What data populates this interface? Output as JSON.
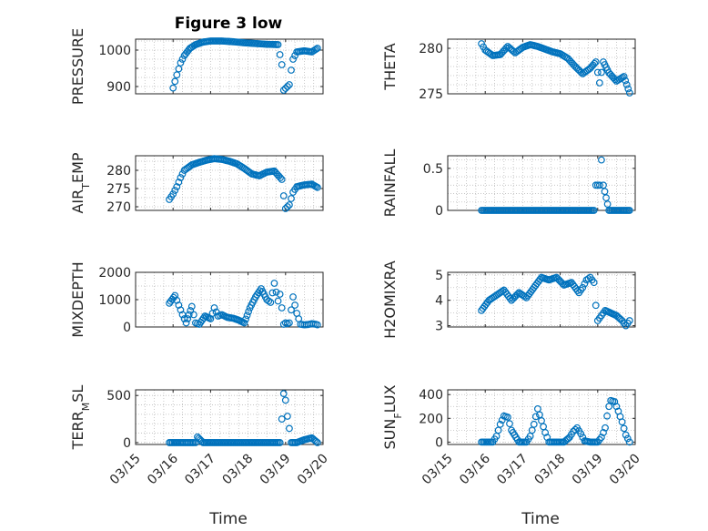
{
  "figure": {
    "title": "Figure 3 low"
  },
  "chart_data": [
    {
      "type": "scatter",
      "ylabel": "PRESSURE",
      "ylim": [
        880,
        1030
      ],
      "yticks": [
        900,
        950,
        1000
      ],
      "ytick_labels": [
        "900",
        "",
        "1000"
      ],
      "y_grid": [
        900,
        925,
        950,
        975,
        1000,
        1025
      ],
      "xtick_labels": [],
      "xlabel": "",
      "x": [
        16.0,
        16.1,
        16.2,
        16.3,
        16.45,
        16.6,
        16.8,
        17.0,
        17.3,
        17.6,
        17.9,
        18.2,
        18.5,
        18.8,
        18.9,
        18.95,
        19.0,
        19.05,
        19.1,
        19.15,
        19.2,
        19.3,
        19.5,
        19.7,
        19.85
      ],
      "y": [
        896,
        932,
        965,
        985,
        1005,
        1015,
        1022,
        1025,
        1025,
        1023,
        1020,
        1018,
        1016,
        1015,
        960,
        890,
        895,
        900,
        905,
        945,
        975,
        995,
        998,
        995,
        1005
      ]
    },
    {
      "type": "scatter",
      "ylabel": "THETA",
      "ylim": [
        275,
        281
      ],
      "yticks": [
        275,
        280
      ],
      "ytick_labels": [
        "275",
        "280"
      ],
      "y_grid": [
        275,
        276,
        277,
        278,
        279,
        280,
        281
      ],
      "xtick_labels": [],
      "xlabel": "",
      "x": [
        15.9,
        16.0,
        16.2,
        16.4,
        16.6,
        16.8,
        17.0,
        17.2,
        17.4,
        17.6,
        17.8,
        18.0,
        18.2,
        18.4,
        18.6,
        18.8,
        18.95,
        19.05,
        19.15,
        19.3,
        19.5,
        19.7,
        19.85
      ],
      "y": [
        280.5,
        279.8,
        279.2,
        279.3,
        280.2,
        279.5,
        280.1,
        280.4,
        280.2,
        279.9,
        279.6,
        279.4,
        278.9,
        278.0,
        277.2,
        277.8,
        278.5,
        276.2,
        278.5,
        277.3,
        276.4,
        276.9,
        275.1
      ]
    },
    {
      "type": "scatter",
      "ylabel": "AIR_TEMP",
      "ylim": [
        269,
        284
      ],
      "yticks": [
        270,
        275,
        280
      ],
      "ytick_labels": [
        "270",
        "275",
        "280"
      ],
      "y_grid": [
        270,
        272.5,
        275,
        277.5,
        280,
        282.5
      ],
      "xtick_labels": [],
      "xlabel": "",
      "x": [
        15.9,
        16.0,
        16.1,
        16.2,
        16.3,
        16.5,
        16.7,
        16.9,
        17.1,
        17.3,
        17.5,
        17.7,
        17.9,
        18.1,
        18.3,
        18.5,
        18.7,
        18.9,
        18.95,
        19.0,
        19.1,
        19.2,
        19.3,
        19.5,
        19.7,
        19.85
      ],
      "y": [
        272,
        273.5,
        275.5,
        278,
        280,
        281.5,
        282.2,
        282.8,
        283.2,
        283.0,
        282.5,
        281.8,
        280.5,
        279.0,
        278.5,
        279.5,
        279.8,
        277.5,
        273.0,
        269.5,
        270.5,
        274,
        275.5,
        276,
        276.2,
        275.3
      ]
    },
    {
      "type": "scatter",
      "ylabel": "RAINFALL",
      "ylim": [
        0,
        0.65
      ],
      "yticks": [
        0,
        0.5
      ],
      "ytick_labels": [
        "0",
        "0.5"
      ],
      "y_grid": [
        0,
        0.1,
        0.2,
        0.3,
        0.4,
        0.5,
        0.6
      ],
      "xtick_labels": [],
      "xlabel": "",
      "x": [
        15.9,
        16.3,
        16.7,
        17.1,
        17.5,
        17.9,
        18.3,
        18.7,
        18.9,
        18.95,
        19.0,
        19.05,
        19.1,
        19.15,
        19.3,
        19.5,
        19.7,
        19.85
      ],
      "y": [
        0,
        0,
        0,
        0,
        0,
        0,
        0,
        0,
        0,
        0.3,
        0.3,
        0.3,
        0.6,
        0.3,
        0,
        0,
        0,
        0
      ]
    },
    {
      "type": "scatter",
      "ylabel": "MIXDEPTH",
      "ylim": [
        0,
        2000
      ],
      "yticks": [
        0,
        1000,
        2000
      ],
      "ytick_labels": [
        "0",
        "1000",
        "2000"
      ],
      "y_grid": [
        0,
        500,
        1000,
        1500,
        2000
      ],
      "xtick_labels": [],
      "xlabel": "",
      "x": [
        15.9,
        16.05,
        16.15,
        16.25,
        16.35,
        16.5,
        16.6,
        16.7,
        16.85,
        17.0,
        17.1,
        17.2,
        17.3,
        17.45,
        17.6,
        17.75,
        17.9,
        18.05,
        18.2,
        18.35,
        18.5,
        18.6,
        18.7,
        18.8,
        18.85,
        18.9,
        18.95,
        19.0,
        19.05,
        19.1,
        19.2,
        19.3,
        19.4,
        19.5,
        19.6,
        19.7,
        19.8,
        19.85
      ],
      "y": [
        870,
        1150,
        800,
        450,
        150,
        750,
        150,
        100,
        400,
        300,
        700,
        400,
        450,
        350,
        320,
        250,
        150,
        700,
        1100,
        1400,
        1000,
        900,
        1600,
        950,
        1200,
        700,
        100,
        150,
        120,
        150,
        1100,
        500,
        100,
        80,
        90,
        120,
        100,
        80
      ]
    },
    {
      "type": "scatter",
      "ylabel": "H2OMIXRA",
      "ylim": [
        2.95,
        5.1
      ],
      "yticks": [
        3,
        4,
        5
      ],
      "ytick_labels": [
        "3",
        "4",
        "5"
      ],
      "y_grid": [
        3,
        3.5,
        4,
        4.5,
        5
      ],
      "xtick_labels": [],
      "xlabel": "",
      "x": [
        15.9,
        16.1,
        16.3,
        16.5,
        16.7,
        16.9,
        17.1,
        17.3,
        17.5,
        17.7,
        17.9,
        18.1,
        18.3,
        18.5,
        18.6,
        18.7,
        18.8,
        18.9,
        18.95,
        19.0,
        19.1,
        19.2,
        19.35,
        19.5,
        19.65,
        19.75,
        19.85
      ],
      "y": [
        3.6,
        4.0,
        4.2,
        4.4,
        4.0,
        4.3,
        4.1,
        4.5,
        4.9,
        4.8,
        4.9,
        4.6,
        4.7,
        4.3,
        4.5,
        4.8,
        4.9,
        4.7,
        3.8,
        3.2,
        3.4,
        3.6,
        3.5,
        3.4,
        3.2,
        3.0,
        3.2
      ]
    },
    {
      "type": "scatter",
      "ylabel": "TERR_MSL",
      "ylim": [
        -20,
        560
      ],
      "yticks": [
        0,
        500
      ],
      "ytick_labels": [
        "0",
        "500"
      ],
      "y_grid": [
        0,
        100,
        200,
        300,
        400,
        500
      ],
      "xtick_labels": [
        "03/15",
        "03/16",
        "03/17",
        "03/18",
        "03/19",
        "03/20"
      ],
      "xlabel": "",
      "x": [
        15.9,
        16.2,
        16.4,
        16.55,
        16.6,
        16.65,
        16.8,
        17.1,
        17.4,
        17.7,
        18.0,
        18.3,
        18.6,
        18.85,
        18.9,
        18.95,
        19.0,
        19.05,
        19.1,
        19.15,
        19.3,
        19.5,
        19.7,
        19.85
      ],
      "y": [
        0,
        0,
        0,
        0,
        0,
        60,
        0,
        0,
        0,
        0,
        0,
        0,
        0,
        0,
        250,
        520,
        450,
        280,
        150,
        0,
        0,
        30,
        50,
        0
      ]
    },
    {
      "type": "scatter",
      "ylabel": "SUN_FLUX",
      "ylim": [
        -20,
        440
      ],
      "yticks": [
        0,
        200,
        400
      ],
      "ytick_labels": [
        "0",
        "200",
        "400"
      ],
      "y_grid": [
        0,
        100,
        200,
        300,
        400
      ],
      "xtick_labels": [
        "03/15",
        "03/16",
        "03/17",
        "03/18",
        "03/19",
        "03/20"
      ],
      "xlabel": "",
      "x": [
        15.9,
        16.2,
        16.3,
        16.4,
        16.5,
        16.6,
        16.7,
        16.9,
        17.1,
        17.2,
        17.3,
        17.4,
        17.5,
        17.6,
        17.7,
        17.9,
        18.1,
        18.25,
        18.35,
        18.45,
        18.55,
        18.65,
        18.8,
        19.0,
        19.1,
        19.2,
        19.25,
        19.3,
        19.35,
        19.45,
        19.55,
        19.65,
        19.75,
        19.85
      ],
      "y": [
        0,
        0,
        50,
        150,
        220,
        210,
        100,
        0,
        0,
        50,
        150,
        280,
        180,
        80,
        0,
        0,
        0,
        40,
        90,
        120,
        70,
        10,
        0,
        0,
        40,
        120,
        220,
        300,
        350,
        340,
        260,
        170,
        60,
        0
      ]
    }
  ],
  "x_axis": {
    "xlim": [
      15,
      20
    ],
    "tick_values": [
      15,
      16,
      17,
      18,
      19,
      20
    ],
    "title": "Time"
  }
}
